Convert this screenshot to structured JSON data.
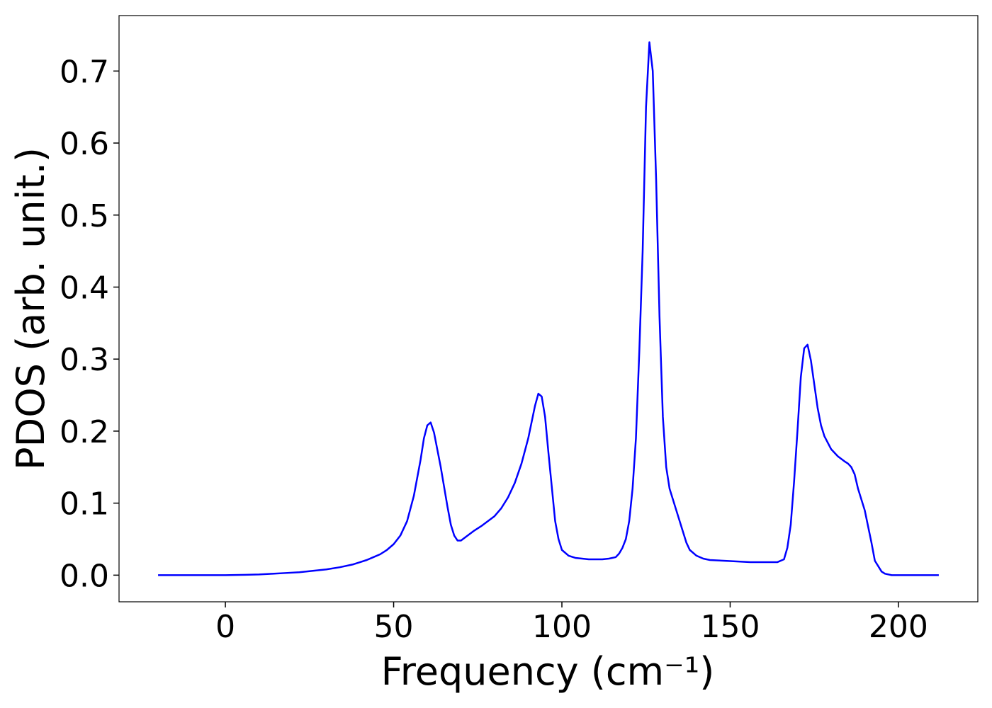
{
  "chart_data": {
    "type": "line",
    "xlabel": "Frequency (cm⁻¹)",
    "ylabel": "PDOS (arb. unit.)",
    "xlim": [
      -31.6,
      223.6
    ],
    "ylim": [
      -0.037,
      0.777
    ],
    "xticks": [
      0,
      50,
      100,
      150,
      200
    ],
    "yticks": [
      {
        "value": 0,
        "label": "0.0"
      },
      0.1,
      0.2,
      0.3,
      0.4,
      0.5,
      0.6,
      0.7
    ],
    "grid": false,
    "series": [
      {
        "color": "#0000ff",
        "x": [
          -20,
          -10,
          0,
          6,
          10,
          14,
          18,
          22,
          26,
          30,
          34,
          38,
          40,
          42,
          44,
          46,
          48,
          50,
          52,
          54,
          56,
          58,
          59,
          60,
          61,
          62,
          64,
          66,
          67,
          68,
          69,
          70,
          72,
          74,
          76,
          78,
          80,
          82,
          84,
          86,
          88,
          90,
          92,
          93,
          94,
          95,
          96,
          98,
          99,
          100,
          102,
          104,
          106,
          108,
          110,
          112,
          114,
          116,
          117,
          118,
          119,
          120,
          121,
          122,
          123,
          124,
          125,
          126,
          127,
          128,
          129,
          130,
          131,
          132,
          134,
          136,
          137,
          138,
          140,
          142,
          144,
          148,
          152,
          156,
          160,
          164,
          166,
          167,
          168,
          169,
          170,
          171,
          172,
          173,
          174,
          175,
          176,
          177,
          178,
          180,
          182,
          184,
          185,
          186,
          187,
          188,
          190,
          192,
          193,
          195,
          196,
          198,
          205,
          212
        ],
        "values": [
          0,
          0,
          0,
          0.0005,
          0.001,
          0.002,
          0.003,
          0.004,
          0.006,
          0.008,
          0.011,
          0.015,
          0.018,
          0.021,
          0.025,
          0.029,
          0.035,
          0.043,
          0.055,
          0.075,
          0.11,
          0.16,
          0.19,
          0.208,
          0.212,
          0.198,
          0.15,
          0.095,
          0.07,
          0.055,
          0.048,
          0.048,
          0.055,
          0.062,
          0.068,
          0.075,
          0.082,
          0.093,
          0.108,
          0.128,
          0.155,
          0.19,
          0.235,
          0.252,
          0.248,
          0.22,
          0.17,
          0.075,
          0.05,
          0.035,
          0.027,
          0.024,
          0.023,
          0.022,
          0.022,
          0.022,
          0.023,
          0.025,
          0.03,
          0.038,
          0.05,
          0.075,
          0.12,
          0.19,
          0.31,
          0.45,
          0.65,
          0.74,
          0.7,
          0.55,
          0.36,
          0.22,
          0.15,
          0.12,
          0.09,
          0.06,
          0.045,
          0.035,
          0.027,
          0.023,
          0.021,
          0.02,
          0.019,
          0.018,
          0.018,
          0.018,
          0.022,
          0.038,
          0.07,
          0.13,
          0.2,
          0.275,
          0.315,
          0.32,
          0.298,
          0.265,
          0.232,
          0.208,
          0.193,
          0.175,
          0.165,
          0.158,
          0.155,
          0.15,
          0.14,
          0.12,
          0.09,
          0.045,
          0.02,
          0.005,
          0.002,
          0,
          0,
          0
        ]
      }
    ]
  }
}
